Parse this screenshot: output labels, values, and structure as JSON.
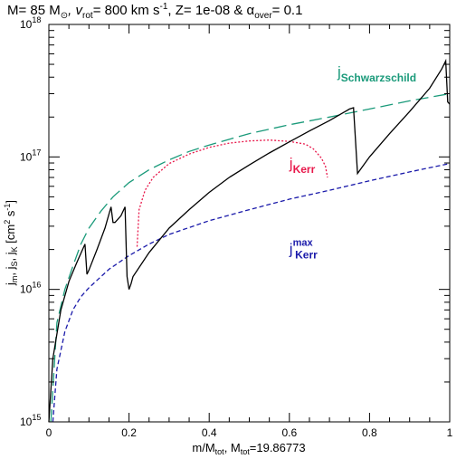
{
  "chart_data": {
    "type": "line",
    "title": {
      "mass_label": "M= 85 M",
      "mass_sub": "⊙",
      "vrot_label": ", v",
      "vrot_sub": "rot",
      "vrot_value": "= 800 km s",
      "vrot_exp": "-1",
      "z_label": ", Z= 1e-08 & α",
      "alpha_sub": "over",
      "alpha_value": "= 0.1"
    },
    "xlabel": {
      "main": "m/M",
      "sub1": "tot",
      "mid": ", M",
      "sub2": "tot",
      "rest": "=19.86773"
    },
    "ylabel": {
      "j1": "j",
      "s1": "m",
      "j2": ", j",
      "s2": "S",
      "j3": ", j",
      "s3": "K",
      "unit_a": " [cm",
      "unit_exp1": "2",
      "unit_b": " s",
      "unit_exp2": "-1",
      "unit_c": "]"
    },
    "xlim": [
      0,
      1
    ],
    "ylim": [
      1000000000000000.0,
      1e+18
    ],
    "yscale": "log",
    "x_ticks": [
      "0",
      "0.2",
      "0.4",
      "0.6",
      "0.8",
      "1"
    ],
    "x_tick_values": [
      0,
      0.2,
      0.4,
      0.6,
      0.8,
      1.0
    ],
    "y_ticks": [
      {
        "base": "10",
        "exp": "15",
        "value": 1000000000000000.0
      },
      {
        "base": "10",
        "exp": "16",
        "value": 1e+16
      },
      {
        "base": "10",
        "exp": "17",
        "value": 1e+17
      },
      {
        "base": "10",
        "exp": "18",
        "value": 1e+18
      }
    ],
    "annotations": [
      {
        "text": "j",
        "sub": "Schwarzschild",
        "color": "#1a9a7a",
        "x": 0.72,
        "y": 4e+17
      },
      {
        "text": "j",
        "sub": "Kerr",
        "color": "#e8174a",
        "x": 0.6,
        "y": 8.2e+16
      },
      {
        "text": "j",
        "sub": "Kerr",
        "sup": "max",
        "color": "#1a1aaa",
        "x": 0.6,
        "y": 1.85e+16
      }
    ],
    "series": [
      {
        "key": "schwarzschild",
        "color": "#1a9a7a",
        "dash": "14,6",
        "x": [
          0.005,
          0.02,
          0.04,
          0.06,
          0.08,
          0.1,
          0.13,
          0.16,
          0.2,
          0.25,
          0.3,
          0.35,
          0.4,
          0.5,
          0.6,
          0.7,
          0.8,
          0.9,
          1.0
        ],
        "y": [
          1000000000000000.0,
          5600000000000000.0,
          1e+16,
          1.5e+16,
          2.2e+16,
          2.9e+16,
          3.9e+16,
          5e+16,
          6.4e+16,
          8e+16,
          9.5e+16,
          1.1e+17,
          1.23e+17,
          1.5e+17,
          1.75e+17,
          2e+17,
          2.3e+17,
          2.65e+17,
          3e+17
        ]
      },
      {
        "key": "kerr",
        "color": "#e8174a",
        "dash": "2,2",
        "x": [
          0.22,
          0.225,
          0.24,
          0.26,
          0.3,
          0.35,
          0.4,
          0.45,
          0.5,
          0.55,
          0.6,
          0.64,
          0.66,
          0.68,
          0.69,
          0.695
        ],
        "y": [
          2.1e+16,
          4e+16,
          5.6e+16,
          7e+16,
          8.9e+16,
          1.05e+17,
          1.18e+17,
          1.27e+17,
          1.32e+17,
          1.34e+17,
          1.31e+17,
          1.25e+17,
          1.15e+17,
          9.8e+16,
          8.5e+16,
          7e+16
        ]
      },
      {
        "key": "kerr-max",
        "color": "#1a1aaa",
        "dash": "5,3",
        "x": [
          0.01,
          0.02,
          0.04,
          0.06,
          0.08,
          0.1,
          0.15,
          0.2,
          0.25,
          0.3,
          0.4,
          0.5,
          0.6,
          0.7,
          0.8,
          0.9,
          1.0
        ],
        "y": [
          1000000000000000.0,
          2500000000000000.0,
          4800000000000000.0,
          7000000000000000.0,
          8800000000000000.0,
          1.03e+16,
          1.42e+16,
          1.8e+16,
          2.2e+16,
          2.6e+16,
          3.3e+16,
          4e+16,
          4.8e+16,
          5.6e+16,
          6.6e+16,
          7.7e+16,
          8.9e+16
        ]
      },
      {
        "key": "specific-angular-momentum",
        "color": "#000000",
        "dash": "",
        "x": [
          0.0,
          0.01,
          0.03,
          0.05,
          0.07,
          0.09,
          0.095,
          0.1,
          0.12,
          0.14,
          0.155,
          0.16,
          0.165,
          0.18,
          0.19,
          0.195,
          0.2,
          0.205,
          0.21,
          0.25,
          0.3,
          0.35,
          0.4,
          0.45,
          0.5,
          0.55,
          0.6,
          0.65,
          0.7,
          0.75,
          0.76,
          0.77,
          0.8,
          0.85,
          0.9,
          0.95,
          0.98,
          0.99,
          0.995,
          1.0
        ],
        "y": [
          1000000000000000.0,
          3000000000000000.0,
          7000000000000000.0,
          1.15e+16,
          1.6e+16,
          2.2e+16,
          1.3e+16,
          1.4e+16,
          2e+16,
          2.9e+16,
          4.2e+16,
          3.2e+16,
          3.2e+16,
          3.6e+16,
          4.2e+16,
          1.25e+16,
          1e+16,
          1.1e+16,
          1.25e+16,
          1.9e+16,
          2.9e+16,
          4e+16,
          5.4e+16,
          7e+16,
          8.7e+16,
          1.07e+17,
          1.3e+17,
          1.57e+17,
          1.88e+17,
          2.3e+17,
          2.35e+17,
          7.5e+16,
          1e+17,
          1.5e+17,
          2.2e+17,
          3.3e+17,
          4.6e+17,
          5.3e+17,
          2.6e+17,
          2.5e+17
        ]
      }
    ]
  }
}
